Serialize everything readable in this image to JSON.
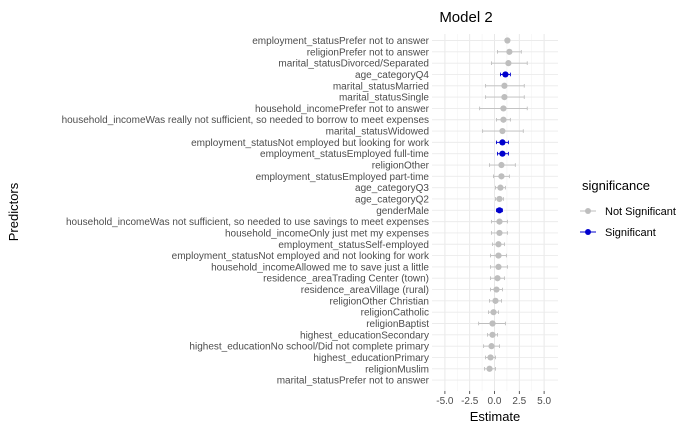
{
  "chart_data": {
    "type": "scatter",
    "title": "Model 2",
    "xlabel": "Estimate",
    "ylabel": "Predictors",
    "xlim": [
      -6.3,
      6.4
    ],
    "x_ticks": [
      -5.0,
      -2.5,
      0.0,
      2.5,
      5.0
    ],
    "x_tick_labels": [
      "-5.0",
      "-2.5",
      "0.0",
      "2.5",
      "5.0"
    ],
    "grid": true,
    "legend": {
      "title": "significance",
      "placement": "right",
      "entries": [
        {
          "label": "Not Significant",
          "color": "#bebebe"
        },
        {
          "label": "Significant",
          "color": "#0000cd"
        }
      ]
    },
    "predictors": [
      {
        "label": "employment_statusPrefer not to answer",
        "estimate": 1.3,
        "low": null,
        "high": null,
        "significance": "Not Significant"
      },
      {
        "label": "religionPrefer not to answer",
        "estimate": 1.5,
        "low": 0.3,
        "high": 2.7,
        "significance": "Not Significant"
      },
      {
        "label": "marital_statusDivorced/Separated",
        "estimate": 1.4,
        "low": -0.3,
        "high": 3.3,
        "significance": "Not Significant"
      },
      {
        "label": "age_categoryQ4",
        "estimate": 1.1,
        "low": 0.6,
        "high": 1.6,
        "significance": "Significant"
      },
      {
        "label": "marital_statusMarried",
        "estimate": 1.0,
        "low": -0.9,
        "high": 3.0,
        "significance": "Not Significant"
      },
      {
        "label": "marital_statusSingle",
        "estimate": 1.0,
        "low": -0.9,
        "high": 3.0,
        "significance": "Not Significant"
      },
      {
        "label": "household_incomePrefer not to answer",
        "estimate": 0.9,
        "low": -1.5,
        "high": 3.3,
        "significance": "Not Significant"
      },
      {
        "label": "household_incomeWas really not sufficient, so needed to borrow to meet expenses",
        "estimate": 0.9,
        "low": 0.2,
        "high": 1.6,
        "significance": "Not Significant"
      },
      {
        "label": "marital_statusWidowed",
        "estimate": 0.8,
        "low": -1.2,
        "high": 2.9,
        "significance": "Not Significant"
      },
      {
        "label": "employment_statusNot employed but looking for work",
        "estimate": 0.8,
        "low": 0.2,
        "high": 1.4,
        "significance": "Significant"
      },
      {
        "label": "employment_statusEmployed full-time",
        "estimate": 0.8,
        "low": 0.3,
        "high": 1.4,
        "significance": "Significant"
      },
      {
        "label": "religionOther",
        "estimate": 0.7,
        "low": -0.5,
        "high": 2.1,
        "significance": "Not Significant"
      },
      {
        "label": "employment_statusEmployed part-time",
        "estimate": 0.7,
        "low": -0.1,
        "high": 1.5,
        "significance": "Not Significant"
      },
      {
        "label": "age_categoryQ3",
        "estimate": 0.6,
        "low": 0.1,
        "high": 1.1,
        "significance": "Not Significant"
      },
      {
        "label": "age_categoryQ2",
        "estimate": 0.5,
        "low": 0.1,
        "high": 0.9,
        "significance": "Not Significant"
      },
      {
        "label": "genderMale",
        "estimate": 0.5,
        "low": 0.2,
        "high": 0.8,
        "significance": "Significant"
      },
      {
        "label": "household_incomeWas not sufficient, so needed to use savings to meet expenses",
        "estimate": 0.5,
        "low": -0.3,
        "high": 1.3,
        "significance": "Not Significant"
      },
      {
        "label": "household_incomeOnly just met my expenses",
        "estimate": 0.5,
        "low": -0.3,
        "high": 1.3,
        "significance": "Not Significant"
      },
      {
        "label": "employment_statusSelf-employed",
        "estimate": 0.4,
        "low": -0.2,
        "high": 1.0,
        "significance": "Not Significant"
      },
      {
        "label": "employment_statusNot employed and not looking for work",
        "estimate": 0.4,
        "low": -0.4,
        "high": 1.2,
        "significance": "Not Significant"
      },
      {
        "label": "household_incomeAllowed me to save just a little",
        "estimate": 0.4,
        "low": -0.4,
        "high": 1.3,
        "significance": "Not Significant"
      },
      {
        "label": "residence_areaTrading Center (town)",
        "estimate": 0.3,
        "low": -0.4,
        "high": 1.0,
        "significance": "Not Significant"
      },
      {
        "label": "residence_areaVillage (rural)",
        "estimate": 0.2,
        "low": -0.4,
        "high": 0.8,
        "significance": "Not Significant"
      },
      {
        "label": "religionOther Christian",
        "estimate": 0.1,
        "low": -0.5,
        "high": 0.7,
        "significance": "Not Significant"
      },
      {
        "label": "religionCatholic",
        "estimate": -0.1,
        "low": -0.6,
        "high": 0.4,
        "significance": "Not Significant"
      },
      {
        "label": "religionBaptist",
        "estimate": -0.2,
        "low": -1.6,
        "high": 1.1,
        "significance": "Not Significant"
      },
      {
        "label": "highest_educationSecondary",
        "estimate": -0.2,
        "low": -0.7,
        "high": 0.3,
        "significance": "Not Significant"
      },
      {
        "label": "highest_educationNo school/Did not complete primary",
        "estimate": -0.3,
        "low": -1.1,
        "high": 0.5,
        "significance": "Not Significant"
      },
      {
        "label": "highest_educationPrimary",
        "estimate": -0.4,
        "low": -0.9,
        "high": 0.1,
        "significance": "Not Significant"
      },
      {
        "label": "religionMuslim",
        "estimate": -0.5,
        "low": -1.0,
        "high": 0.1,
        "significance": "Not Significant"
      },
      {
        "label": "marital_statusPrefer not to answer",
        "estimate": null,
        "low": null,
        "high": null,
        "significance": "Not Significant"
      }
    ]
  }
}
